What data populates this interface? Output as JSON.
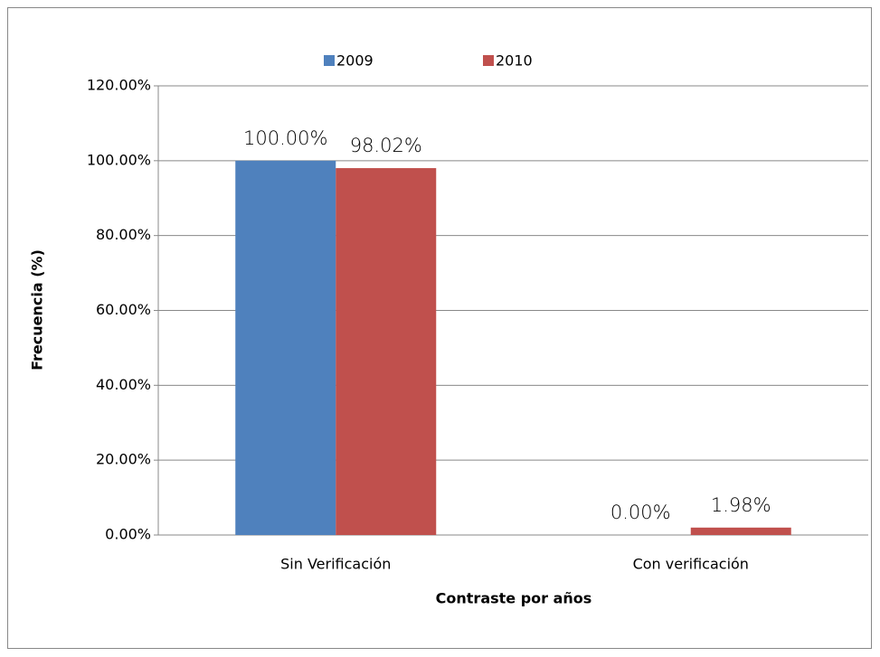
{
  "chart_data": {
    "type": "bar",
    "xlabel": "Contraste por años",
    "ylabel": "Frecuencia (%)",
    "categories": [
      "Sin Verificación",
      "Con verificación"
    ],
    "series": [
      {
        "name": "2009",
        "color": "#4f81bd",
        "values": [
          100,
          0
        ],
        "value_labels": [
          "100.00%",
          "0.00%"
        ]
      },
      {
        "name": "2010",
        "color": "#c0504d",
        "values": [
          98.02,
          1.98
        ],
        "value_labels": [
          "98.02%",
          "1.98%"
        ]
      }
    ],
    "ylim": [
      0,
      120
    ],
    "yticks": [
      {
        "value": 0,
        "label": "0.00%"
      },
      {
        "value": 20,
        "label": "20.00%"
      },
      {
        "value": 40,
        "label": "40.00%"
      },
      {
        "value": 60,
        "label": "60.00%"
      },
      {
        "value": 80,
        "label": "80.00%"
      },
      {
        "value": 100,
        "label": "100.00%"
      },
      {
        "value": 120,
        "label": "120.00%"
      }
    ],
    "grid": true,
    "legend": "top"
  }
}
